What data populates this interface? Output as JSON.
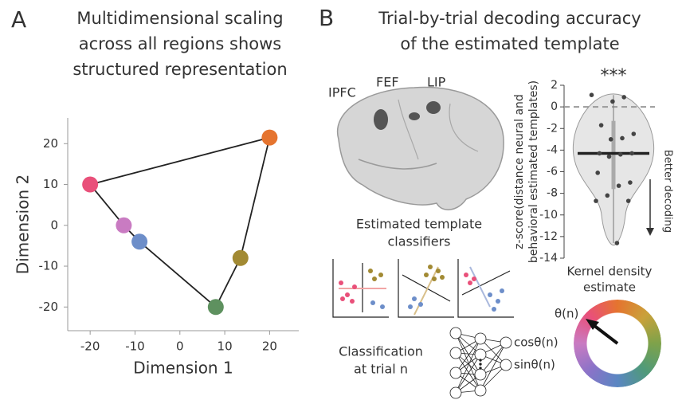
{
  "panels": {
    "a_letter": "A",
    "a_title": [
      "Multidimensional scaling",
      "across all regions shows",
      "structured representation"
    ],
    "b_letter": "B",
    "b_title": [
      "Trial-by-trial decoding accuracy",
      "of the estimated template"
    ],
    "brain_labels": [
      "IPFC",
      "FEF",
      "LIP"
    ],
    "classifier_title": [
      "Estimated template",
      "classifiers"
    ],
    "classification": [
      "Classification",
      "at trial n"
    ],
    "outputs": [
      "cosθ(n)",
      "sinθ(n)"
    ],
    "wheel_label": "θ(n)",
    "better": "Better decoding"
  },
  "chart_data": [
    {
      "type": "scatter",
      "xlabel": "Dimension 1",
      "ylabel": "Dimension 2",
      "x": [
        -20,
        -12.5,
        -9,
        8,
        13.5,
        20
      ],
      "values": [
        10,
        0,
        -4,
        -20,
        -8,
        21.5
      ],
      "colors": [
        "#e9507a",
        "#c97bc2",
        "#6d8ec9",
        "#5e915f",
        "#a28a33",
        "#e5742f"
      ],
      "closed": true,
      "xlim": [
        -25,
        26.5
      ],
      "ylim": [
        -25.8,
        26.3
      ],
      "xticks": [
        -20,
        -10,
        0,
        10,
        20
      ],
      "yticks": [
        -20,
        -10,
        0,
        10,
        20
      ]
    },
    {
      "type": "violin",
      "annotation": "***",
      "ylabel": [
        "z-score(distance neural and",
        "behavioral estimated templates)"
      ],
      "xlabel": [
        "Kernel density",
        "estimate"
      ],
      "values": [
        1.1,
        0.9,
        0.5,
        -1.7,
        -2.5,
        -2.9,
        -3.0,
        -4.3,
        -4.3,
        -4.4,
        -4.6,
        -6.1,
        -7.0,
        -7.3,
        -8.2,
        -8.7,
        -8.7,
        -12.6
      ],
      "median": -4.3,
      "iqr": [
        -7.6,
        -1.3
      ],
      "reference_line": 0,
      "ylim": [
        -14,
        2
      ],
      "yticks": [
        2,
        0,
        -2,
        -4,
        -6,
        -8,
        -10,
        -12,
        -14
      ]
    }
  ]
}
